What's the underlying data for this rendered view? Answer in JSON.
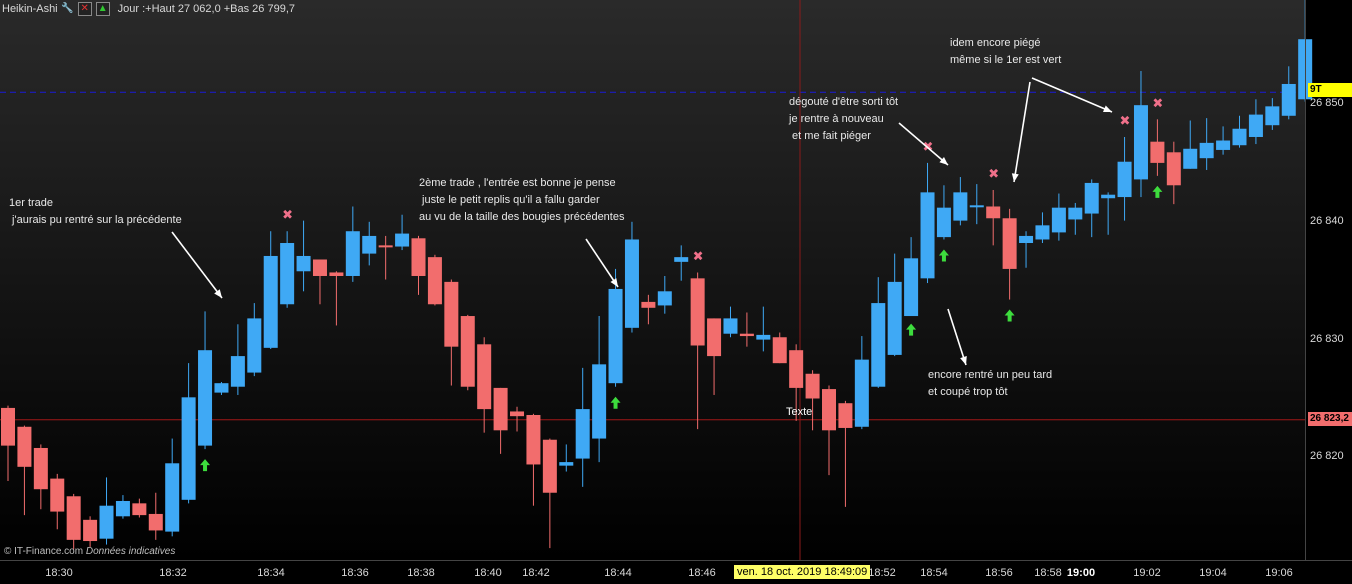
{
  "header": {
    "chart_type": "Heikin-Ashi",
    "stats": "Jour :+Haut 27 062,0 +Bas 26 799,7",
    "icons": [
      "wrench-icon",
      "close-window-icon",
      "up-arrow-icon"
    ]
  },
  "y_axis": {
    "ticks": [
      "26 850",
      "26 840",
      "26 830",
      "26 820"
    ],
    "tick_values": [
      26850,
      26840,
      26830,
      26820
    ],
    "current_price_label": "26 823,2",
    "current_price_value": 26823.2,
    "marker_label": "9T",
    "marker_value": 26851.0
  },
  "x_axis": {
    "ticks": [
      "18:30",
      "18:32",
      "18:34",
      "18:36",
      "18:38",
      "18:40",
      "18:42",
      "18:44",
      "18:46",
      "18:52",
      "18:54",
      "18:56",
      "18:58",
      "19:00",
      "19:02",
      "19:04",
      "19:06"
    ],
    "cursor_label": "ven. 18 oct. 2019 18:49:09"
  },
  "annotations": {
    "trade1": "1er trade\n j'aurais pu rentré sur la précédente",
    "trade2": "2ème trade , l'entrée est bonne je pense\n juste le petit replis qu'il a fallu garder\nau vu de la taille des bougies précédentes",
    "trade3": "encore rentré un peu tard\net coupé trop tôt",
    "trade4": "dégouté d'être sorti tôt\nje rentre à nouveau\n et me fait piéger",
    "trade5": "idem encore piégé\nmême si le 1er est vert",
    "cursor_text": "Texte"
  },
  "credit": {
    "source": "© IT-Finance.com",
    "note": "Données indicatives"
  },
  "colors": {
    "up": "#3fa9f5",
    "down": "#f26d6d",
    "up_arrow": "#3ddc3d",
    "exit_x": "#f0708a",
    "hline_blue": "#1a1ad8",
    "hline_red": "#a01818",
    "marker_bg": "#ffff00",
    "price_bg": "#f26d6d"
  },
  "chart_data": {
    "type": "candlestick",
    "variant": "Heikin-Ashi",
    "y_ticks": [
      26820,
      26830,
      26840,
      26850
    ],
    "candles": [
      {
        "o": 26824.2,
        "c": 26821.0,
        "h": 26824.4,
        "l": 26818.0
      },
      {
        "o": 26822.6,
        "c": 26819.2,
        "h": 26822.7,
        "l": 26815.1
      },
      {
        "o": 26820.8,
        "c": 26817.3,
        "h": 26821.1,
        "l": 26815.6
      },
      {
        "o": 26818.2,
        "c": 26815.4,
        "h": 26818.6,
        "l": 26813.9
      },
      {
        "o": 26816.7,
        "c": 26813.0,
        "h": 26816.9,
        "l": 26812.2
      },
      {
        "o": 26814.7,
        "c": 26812.9,
        "h": 26815.0,
        "l": 26812.4
      },
      {
        "o": 26813.1,
        "c": 26815.9,
        "h": 26818.3,
        "l": 26812.6
      },
      {
        "o": 26815.0,
        "c": 26816.3,
        "h": 26816.8,
        "l": 26814.8
      },
      {
        "o": 26816.1,
        "c": 26815.1,
        "h": 26816.5,
        "l": 26814.9
      },
      {
        "o": 26815.2,
        "c": 26813.8,
        "h": 26817.0,
        "l": 26813.0
      },
      {
        "o": 26813.7,
        "c": 26819.5,
        "h": 26821.6,
        "l": 26813.3
      },
      {
        "o": 26816.4,
        "c": 26825.1,
        "h": 26828.0,
        "l": 26816.1
      },
      {
        "o": 26821.0,
        "c": 26829.1,
        "h": 26832.4,
        "l": 26820.7
      },
      {
        "o": 26825.5,
        "c": 26826.3,
        "h": 26826.4,
        "l": 26825.3
      },
      {
        "o": 26826.0,
        "c": 26828.6,
        "h": 26831.3,
        "l": 26825.3
      },
      {
        "o": 26827.2,
        "c": 26831.8,
        "h": 26833.1,
        "l": 26826.9
      },
      {
        "o": 26829.3,
        "c": 26837.1,
        "h": 26839.2,
        "l": 26829.2
      },
      {
        "o": 26833.0,
        "c": 26838.2,
        "h": 26839.2,
        "l": 26832.7
      },
      {
        "o": 26835.8,
        "c": 26837.1,
        "h": 26840.1,
        "l": 26834.1
      },
      {
        "o": 26836.8,
        "c": 26835.4,
        "h": 26836.8,
        "l": 26833.0
      },
      {
        "o": 26835.7,
        "c": 26835.4,
        "h": 26835.8,
        "l": 26831.2
      },
      {
        "o": 26835.4,
        "c": 26839.2,
        "h": 26841.3,
        "l": 26834.9
      },
      {
        "o": 26837.3,
        "c": 26838.8,
        "h": 26840.0,
        "l": 26836.3
      },
      {
        "o": 26838.0,
        "c": 26837.9,
        "h": 26838.8,
        "l": 26835.1
      },
      {
        "o": 26837.9,
        "c": 26839.0,
        "h": 26840.6,
        "l": 26837.6
      },
      {
        "o": 26838.6,
        "c": 26835.4,
        "h": 26838.8,
        "l": 26833.8
      },
      {
        "o": 26837.0,
        "c": 26833.0,
        "h": 26837.2,
        "l": 26832.9
      },
      {
        "o": 26834.9,
        "c": 26829.4,
        "h": 26835.1,
        "l": 26826.1
      },
      {
        "o": 26832.0,
        "c": 26826.0,
        "h": 26832.1,
        "l": 26825.7
      },
      {
        "o": 26829.6,
        "c": 26824.1,
        "h": 26830.2,
        "l": 26822.1
      },
      {
        "o": 26825.9,
        "c": 26822.3,
        "h": 26825.9,
        "l": 26820.3
      },
      {
        "o": 26823.9,
        "c": 26823.5,
        "h": 26824.3,
        "l": 26822.2
      },
      {
        "o": 26823.6,
        "c": 26819.4,
        "h": 26823.7,
        "l": 26815.9
      },
      {
        "o": 26821.5,
        "c": 26817.0,
        "h": 26821.6,
        "l": 26812.3
      },
      {
        "o": 26819.3,
        "c": 26819.6,
        "h": 26821.1,
        "l": 26818.8
      },
      {
        "o": 26819.9,
        "c": 26824.1,
        "h": 26827.6,
        "l": 26817.5
      },
      {
        "o": 26821.6,
        "c": 26827.9,
        "h": 26832.0,
        "l": 26819.6
      },
      {
        "o": 26826.3,
        "c": 26834.3,
        "h": 26836.0,
        "l": 26826.0
      },
      {
        "o": 26831.0,
        "c": 26838.5,
        "h": 26840.0,
        "l": 26830.6
      },
      {
        "o": 26833.2,
        "c": 26832.7,
        "h": 26833.8,
        "l": 26831.3
      },
      {
        "o": 26832.9,
        "c": 26834.1,
        "h": 26835.4,
        "l": 26832.2
      },
      {
        "o": 26836.6,
        "c": 26837.0,
        "h": 26838.0,
        "l": 26835.0
      },
      {
        "o": 26835.2,
        "c": 26829.5,
        "h": 26835.7,
        "l": 26822.4
      },
      {
        "o": 26831.8,
        "c": 26828.6,
        "h": 26831.8,
        "l": 26825.3
      },
      {
        "o": 26830.5,
        "c": 26831.8,
        "h": 26832.8,
        "l": 26830.2
      },
      {
        "o": 26830.5,
        "c": 26830.3,
        "h": 26832.3,
        "l": 26829.4
      },
      {
        "o": 26830.0,
        "c": 26830.4,
        "h": 26832.8,
        "l": 26829.0
      },
      {
        "o": 26830.2,
        "c": 26828.0,
        "h": 26830.6,
        "l": 26828.0
      },
      {
        "o": 26829.1,
        "c": 26825.9,
        "h": 26829.6,
        "l": 26823.1
      },
      {
        "o": 26827.1,
        "c": 26825.0,
        "h": 26827.4,
        "l": 26822.3
      },
      {
        "o": 26825.8,
        "c": 26822.3,
        "h": 26826.1,
        "l": 26818.5
      },
      {
        "o": 26824.6,
        "c": 26822.5,
        "h": 26824.8,
        "l": 26815.8
      },
      {
        "o": 26822.6,
        "c": 26828.3,
        "h": 26830.3,
        "l": 26822.4
      },
      {
        "o": 26826.0,
        "c": 26833.1,
        "h": 26835.3,
        "l": 26825.9
      },
      {
        "o": 26828.7,
        "c": 26834.9,
        "h": 26837.3,
        "l": 26828.6
      },
      {
        "o": 26832.0,
        "c": 26836.9,
        "h": 26838.7,
        "l": 26832.2
      },
      {
        "o": 26835.2,
        "c": 26842.5,
        "h": 26845.0,
        "l": 26834.8
      },
      {
        "o": 26838.7,
        "c": 26841.2,
        "h": 26843.1,
        "l": 26838.5
      },
      {
        "o": 26840.1,
        "c": 26842.5,
        "h": 26843.8,
        "l": 26839.7
      },
      {
        "o": 26841.3,
        "c": 26841.4,
        "h": 26843.2,
        "l": 26839.8
      },
      {
        "o": 26841.3,
        "c": 26840.3,
        "h": 26842.7,
        "l": 26838.0
      },
      {
        "o": 26840.3,
        "c": 26836.0,
        "h": 26841.1,
        "l": 26833.4
      },
      {
        "o": 26838.2,
        "c": 26838.8,
        "h": 26839.2,
        "l": 26836.1
      },
      {
        "o": 26838.5,
        "c": 26839.7,
        "h": 26840.8,
        "l": 26838.2
      },
      {
        "o": 26839.1,
        "c": 26841.2,
        "h": 26842.4,
        "l": 26838.4
      },
      {
        "o": 26840.2,
        "c": 26841.2,
        "h": 26841.6,
        "l": 26838.9
      },
      {
        "o": 26840.7,
        "c": 26843.3,
        "h": 26843.6,
        "l": 26838.7
      },
      {
        "o": 26842.0,
        "c": 26842.3,
        "h": 26842.5,
        "l": 26838.9
      },
      {
        "o": 26842.1,
        "c": 26845.1,
        "h": 26847.2,
        "l": 26840.1
      },
      {
        "o": 26843.6,
        "c": 26849.9,
        "h": 26852.8,
        "l": 26842.1
      },
      {
        "o": 26846.8,
        "c": 26845.0,
        "h": 26848.7,
        "l": 26843.9
      },
      {
        "o": 26845.9,
        "c": 26843.1,
        "h": 26846.8,
        "l": 26841.5
      },
      {
        "o": 26844.5,
        "c": 26846.2,
        "h": 26848.6,
        "l": 26844.5
      },
      {
        "o": 26845.4,
        "c": 26846.7,
        "h": 26848.8,
        "l": 26844.4
      },
      {
        "o": 26846.1,
        "c": 26846.9,
        "h": 26848.1,
        "l": 26845.7
      },
      {
        "o": 26846.5,
        "c": 26847.9,
        "h": 26849.0,
        "l": 26846.3
      },
      {
        "o": 26847.2,
        "c": 26849.1,
        "h": 26850.4,
        "l": 26846.6
      },
      {
        "o": 26848.2,
        "c": 26849.8,
        "h": 26850.5,
        "l": 26847.8
      },
      {
        "o": 26849.0,
        "c": 26851.7,
        "h": 26853.2,
        "l": 26848.7
      },
      {
        "o": 26850.4,
        "c": 26855.5,
        "h": 26860.2,
        "l": 26850.2
      }
    ],
    "entry_arrows": [
      12,
      37,
      55,
      57,
      61,
      70
    ],
    "exit_marks": [
      17,
      42,
      56,
      60,
      68,
      70
    ]
  }
}
